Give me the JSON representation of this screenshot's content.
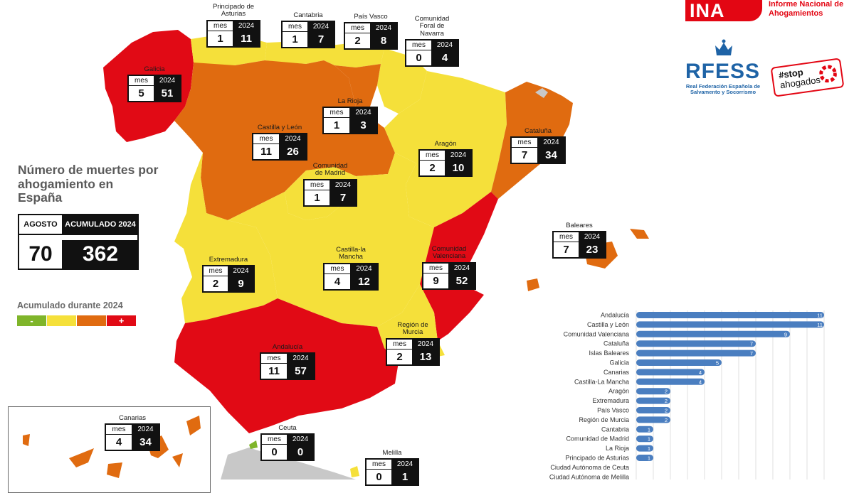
{
  "header": {
    "ina_logo": "INA",
    "ina_title": "Informe Nacional de Ahogamientos",
    "rfess_logo": "RFESS",
    "rfess_subtitle": "Real Federación Española de Salvamento y Socorrismo",
    "stop_tag": "#stop",
    "stop_word": "ahogados"
  },
  "summary": {
    "title": "Número de muertes por ahogamiento en España",
    "col_month": "AGOSTO",
    "col_total": "ACUMULADO 2024",
    "month_value": "70",
    "total_value": "362"
  },
  "legend": {
    "title": "Acumulado durante 2024",
    "items": [
      {
        "label": "-",
        "color": "#7fb52a"
      },
      {
        "label": "",
        "color": "#f5e03a"
      },
      {
        "label": "",
        "color": "#e06b10"
      },
      {
        "label": "+",
        "color": "#e10a15"
      }
    ]
  },
  "regions": [
    {
      "name": "Principado de Asturias",
      "mes_label": "mes",
      "year_label": "2024",
      "mes": "1",
      "year": "11"
    },
    {
      "name": "Cantabria",
      "mes_label": "mes",
      "year_label": "2024",
      "mes": "1",
      "year": "7"
    },
    {
      "name": "País Vasco",
      "mes_label": "mes",
      "year_label": "2024",
      "mes": "2",
      "year": "8"
    },
    {
      "name": "Comunidad Foral de Navarra",
      "mes_label": "mes",
      "year_label": "2024",
      "mes": "0",
      "year": "4"
    },
    {
      "name": "Galicia",
      "mes_label": "mes",
      "year_label": "2024",
      "mes": "5",
      "year": "51"
    },
    {
      "name": "La Rioja",
      "mes_label": "mes",
      "year_label": "2024",
      "mes": "1",
      "year": "3"
    },
    {
      "name": "Castilla y León",
      "mes_label": "mes",
      "year_label": "2024",
      "mes": "11",
      "year": "26"
    },
    {
      "name": "Aragón",
      "mes_label": "mes",
      "year_label": "2024",
      "mes": "2",
      "year": "10"
    },
    {
      "name": "Cataluña",
      "mes_label": "mes",
      "year_label": "2024",
      "mes": "7",
      "year": "34"
    },
    {
      "name": "Comunidad de Madrid",
      "mes_label": "mes",
      "year_label": "2024",
      "mes": "1",
      "year": "7"
    },
    {
      "name": "Baleares",
      "mes_label": "mes",
      "year_label": "2024",
      "mes": "7",
      "year": "23"
    },
    {
      "name": "Extremadura",
      "mes_label": "mes",
      "year_label": "2024",
      "mes": "2",
      "year": "9"
    },
    {
      "name": "Castilla-la Mancha",
      "mes_label": "mes",
      "year_label": "2024",
      "mes": "4",
      "year": "12"
    },
    {
      "name": "Comunidad Valenciana",
      "mes_label": "mes",
      "year_label": "2024",
      "mes": "9",
      "year": "52"
    },
    {
      "name": "Región de Murcia",
      "mes_label": "mes",
      "year_label": "2024",
      "mes": "2",
      "year": "13"
    },
    {
      "name": "Andalucía",
      "mes_label": "mes",
      "year_label": "2024",
      "mes": "11",
      "year": "57"
    },
    {
      "name": "Canarias",
      "mes_label": "mes",
      "year_label": "2024",
      "mes": "4",
      "year": "34"
    },
    {
      "name": "Ceuta",
      "mes_label": "mes",
      "year_label": "2024",
      "mes": "0",
      "year": "0"
    },
    {
      "name": "Melilla",
      "mes_label": "mes",
      "year_label": "2024",
      "mes": "0",
      "year": "1"
    }
  ],
  "colors": {
    "red": "#e10a15",
    "orange": "#e06b10",
    "yellow": "#f5e03a",
    "green": "#7fb52a",
    "grey": "#c8c8c8",
    "bar": "#4a7ec0"
  },
  "chart_data": {
    "type": "bar",
    "orientation": "horizontal",
    "categories": [
      "Andalucía",
      "Castilla y León",
      "Comunidad Valenciana",
      "Cataluña",
      "Islas Baleares",
      "Galicia",
      "Canarias",
      "Castilla-La Mancha",
      "Aragón",
      "Extremadura",
      "País Vasco",
      "Región de Murcia",
      "Cantabria",
      "Comunidad de Madrid",
      "La Rioja",
      "Principado de Asturias",
      "Ciudad Autónoma de Ceuta",
      "Ciudad Autónoma de Melilla"
    ],
    "values": [
      11,
      11,
      9,
      7,
      7,
      5,
      4,
      4,
      2,
      2,
      2,
      2,
      1,
      1,
      1,
      1,
      0,
      0
    ],
    "xlim": [
      0,
      11
    ],
    "grid": true
  }
}
